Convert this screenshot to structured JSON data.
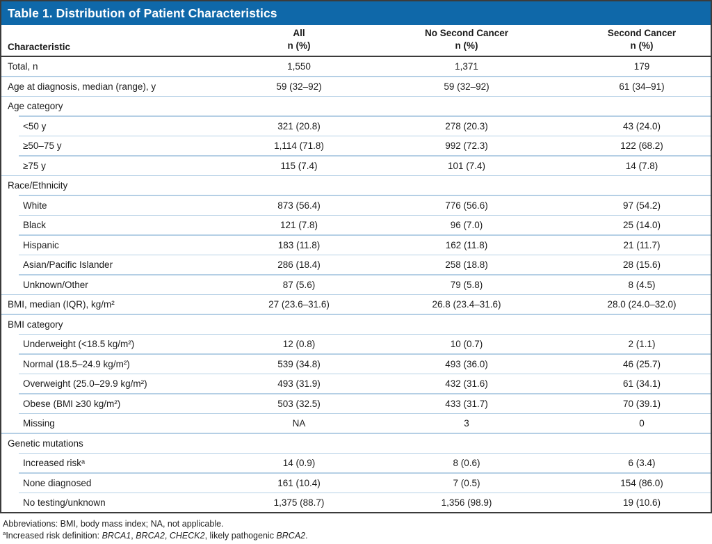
{
  "table": {
    "title": "Table 1. Distribution of Patient Characteristics",
    "columns": {
      "characteristic": "Characteristic",
      "all_line1": "All",
      "all_line2": "n (%)",
      "no_second_line1": "No Second Cancer",
      "no_second_line2": "n (%)",
      "second_line1": "Second Cancer",
      "second_line2": "n (%)"
    },
    "rows": [
      {
        "label": "Total, n",
        "indent": 0,
        "section": false,
        "all": "1,550",
        "no_second": "1,371",
        "second": "179"
      },
      {
        "label": "Age at diagnosis, median (range), y",
        "indent": 0,
        "section": false,
        "all": "59 (32–92)",
        "no_second": "59 (32–92)",
        "second": "61 (34–91)"
      },
      {
        "label": "Age category",
        "indent": 0,
        "section": true,
        "all": "",
        "no_second": "",
        "second": ""
      },
      {
        "label": "<50 y",
        "indent": 1,
        "section": false,
        "all": "321 (20.8)",
        "no_second": "278 (20.3)",
        "second": "43 (24.0)"
      },
      {
        "label": "≥50–75 y",
        "indent": 1,
        "section": false,
        "all": "1,114 (71.8)",
        "no_second": "992 (72.3)",
        "second": "122 (68.2)"
      },
      {
        "label": "≥75 y",
        "indent": 1,
        "section": false,
        "all": "115 (7.4)",
        "no_second": "101 (7.4)",
        "second": "14 (7.8)"
      },
      {
        "label": "Race/Ethnicity",
        "indent": 0,
        "section": true,
        "all": "",
        "no_second": "",
        "second": ""
      },
      {
        "label": "White",
        "indent": 1,
        "section": false,
        "all": "873 (56.4)",
        "no_second": "776 (56.6)",
        "second": "97 (54.2)"
      },
      {
        "label": "Black",
        "indent": 1,
        "section": false,
        "all": "121 (7.8)",
        "no_second": "96 (7.0)",
        "second": "25 (14.0)"
      },
      {
        "label": "Hispanic",
        "indent": 1,
        "section": false,
        "all": "183 (11.8)",
        "no_second": "162 (11.8)",
        "second": "21 (11.7)"
      },
      {
        "label": "Asian/Pacific Islander",
        "indent": 1,
        "section": false,
        "all": "286 (18.4)",
        "no_second": "258 (18.8)",
        "second": "28 (15.6)"
      },
      {
        "label": "Unknown/Other",
        "indent": 1,
        "section": false,
        "all": "87 (5.6)",
        "no_second": "79 (5.8)",
        "second": "8 (4.5)"
      },
      {
        "label": "BMI, median (IQR), kg/m²",
        "indent": 0,
        "section": false,
        "all": "27 (23.6–31.6)",
        "no_second": "26.8 (23.4–31.6)",
        "second": "28.0 (24.0–32.0)"
      },
      {
        "label": "BMI category",
        "indent": 0,
        "section": true,
        "all": "",
        "no_second": "",
        "second": ""
      },
      {
        "label": "Underweight (<18.5 kg/m²)",
        "indent": 1,
        "section": false,
        "all": "12 (0.8)",
        "no_second": "10 (0.7)",
        "second": "2 (1.1)"
      },
      {
        "label": "Normal (18.5–24.9 kg/m²)",
        "indent": 1,
        "section": false,
        "all": "539 (34.8)",
        "no_second": "493 (36.0)",
        "second": "46 (25.7)"
      },
      {
        "label": "Overweight (25.0–29.9 kg/m²)",
        "indent": 1,
        "section": false,
        "all": "493 (31.9)",
        "no_second": "432 (31.6)",
        "second": "61 (34.1)"
      },
      {
        "label": "Obese (BMI ≥30 kg/m²)",
        "indent": 1,
        "section": false,
        "all": "503 (32.5)",
        "no_second": "433 (31.7)",
        "second": "70 (39.1)"
      },
      {
        "label": "Missing",
        "indent": 1,
        "section": false,
        "all": "NA",
        "no_second": "3",
        "second": "0"
      },
      {
        "label": "Genetic mutations",
        "indent": 0,
        "section": true,
        "all": "",
        "no_second": "",
        "second": ""
      },
      {
        "label": "Increased riskᵃ",
        "indent": 1,
        "section": false,
        "all": "14 (0.9)",
        "no_second": "8 (0.6)",
        "second": "6 (3.4)"
      },
      {
        "label": "None diagnosed",
        "indent": 1,
        "section": false,
        "all": "161 (10.4)",
        "no_second": "7 (0.5)",
        "second": "154 (86.0)"
      },
      {
        "label": "No testing/unknown",
        "indent": 1,
        "section": false,
        "all": "1,375 (88.7)",
        "no_second": "1,356 (98.9)",
        "second": "19 (10.6)"
      }
    ]
  },
  "footnotes": {
    "line1": "Abbreviations: BMI, body mass index; NA, not applicable.",
    "line2": {
      "sup": "a",
      "parts": [
        {
          "text": "Increased risk definition: ",
          "italic": false
        },
        {
          "text": "BRCA1",
          "italic": true
        },
        {
          "text": ", ",
          "italic": false
        },
        {
          "text": "BRCA2",
          "italic": true
        },
        {
          "text": ", ",
          "italic": false
        },
        {
          "text": "CHECK2",
          "italic": true
        },
        {
          "text": ", likely pathogenic ",
          "italic": false
        },
        {
          "text": "BRCA2",
          "italic": true
        },
        {
          "text": ".",
          "italic": false
        }
      ]
    }
  },
  "colors": {
    "banner_blue": "#0f68a9",
    "divider_blue": "#b5cfe5",
    "border_dark": "#3b3b3b"
  }
}
